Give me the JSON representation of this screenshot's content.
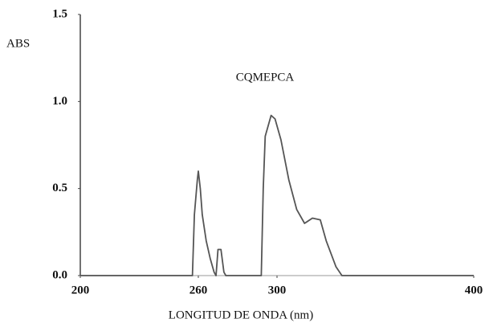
{
  "chart_data": {
    "type": "line",
    "y_label": "ABS",
    "x_label": "LONGITUD DE ONDA (nm)",
    "annotation": "CQMEPCA",
    "x": [
      200,
      257,
      258,
      259.5,
      260,
      261,
      262,
      264,
      266,
      268,
      269,
      270,
      271.5,
      273,
      274,
      292,
      293,
      294,
      297,
      299,
      302,
      306,
      310,
      314,
      318,
      322,
      325,
      330,
      333,
      400
    ],
    "series": [
      {
        "color": "#555555",
        "values": [
          0,
          0,
          0.35,
          0.55,
          0.6,
          0.5,
          0.35,
          0.2,
          0.1,
          0.02,
          0,
          0.15,
          0.15,
          0.02,
          0,
          0,
          0.5,
          0.8,
          0.92,
          0.9,
          0.78,
          0.55,
          0.38,
          0.3,
          0.33,
          0.32,
          0.2,
          0.05,
          0,
          0
        ]
      }
    ],
    "xlim": [
      200,
      400
    ],
    "xticks": [
      200,
      260,
      300,
      400
    ],
    "ylim": [
      0,
      1.5
    ],
    "yticks": [
      {
        "value": 0,
        "label": "0.0"
      },
      0.5,
      {
        "value": 1,
        "label": "1.0"
      },
      1.5
    ]
  }
}
